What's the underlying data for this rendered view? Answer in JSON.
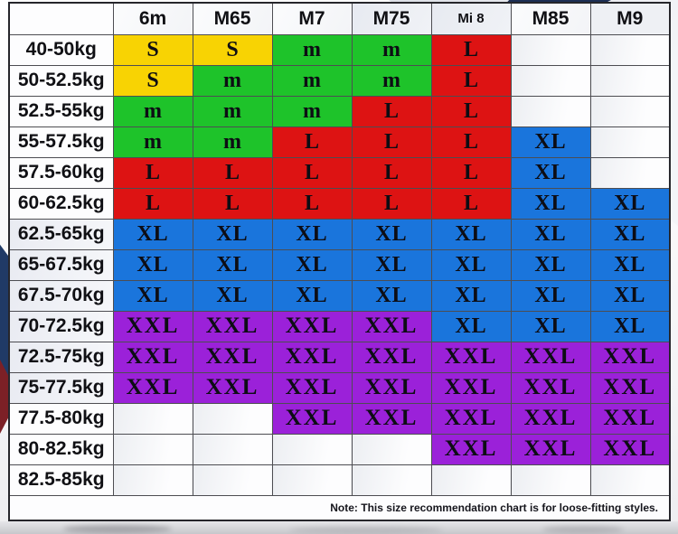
{
  "colors": {
    "yellow": "#f8d303",
    "green": "#1ec32a",
    "red": "#dd1313",
    "blue": "#1a75dc",
    "purple": "#9b21d9"
  },
  "chart_data": {
    "type": "table",
    "corner_label": "",
    "columns": [
      "6m",
      "M65",
      "M7",
      "M75",
      "Mi 8",
      "M85",
      "M9"
    ],
    "rows": [
      {
        "label": "40-50kg",
        "cells": [
          "S:yellow",
          "S:yellow",
          "m:green",
          "m:green",
          "L:red",
          "",
          ""
        ]
      },
      {
        "label": "50-52.5kg",
        "cells": [
          "S:yellow",
          "m:green",
          "m:green",
          "m:green",
          "L:red",
          "",
          ""
        ]
      },
      {
        "label": "52.5-55kg",
        "cells": [
          "m:green",
          "m:green",
          "m:green",
          "L:red",
          "L:red",
          "",
          ""
        ]
      },
      {
        "label": "55-57.5kg",
        "cells": [
          "m:green",
          "m:green",
          "L:red",
          "L:red",
          "L:red",
          "XL:blue",
          ""
        ]
      },
      {
        "label": "57.5-60kg",
        "cells": [
          "L:red",
          "L:red",
          "L:red",
          "L:red",
          "L:red",
          "XL:blue",
          ""
        ]
      },
      {
        "label": "60-62.5kg",
        "cells": [
          "L:red",
          "L:red",
          "L:red",
          "L:red",
          "L:red",
          "XL:blue",
          "XL:blue"
        ]
      },
      {
        "label": "62.5-65kg",
        "cells": [
          "XL:blue",
          "XL:blue",
          "XL:blue",
          "XL:blue",
          "XL:blue",
          "XL:blue",
          "XL:blue"
        ]
      },
      {
        "label": "65-67.5kg",
        "cells": [
          "XL:blue",
          "XL:blue",
          "XL:blue",
          "XL:blue",
          "XL:blue",
          "XL:blue",
          "XL:blue"
        ]
      },
      {
        "label": "67.5-70kg",
        "cells": [
          "XL:blue",
          "XL:blue",
          "XL:blue",
          "XL:blue",
          "XL:blue",
          "XL:blue",
          "XL:blue"
        ]
      },
      {
        "label": "70-72.5kg",
        "cells": [
          "XXL:purple",
          "XXL:purple",
          "XXL:purple",
          "XXL:purple",
          "XL:blue",
          "XL:blue",
          "XL:blue"
        ]
      },
      {
        "label": "72.5-75kg",
        "cells": [
          "XXL:purple",
          "XXL:purple",
          "XXL:purple",
          "XXL:purple",
          "XXL:purple",
          "XXL:purple",
          "XXL:purple"
        ]
      },
      {
        "label": "75-77.5kg",
        "cells": [
          "XXL:purple",
          "XXL:purple",
          "XXL:purple",
          "XXL:purple",
          "XXL:purple",
          "XXL:purple",
          "XXL:purple"
        ]
      },
      {
        "label": "77.5-80kg",
        "cells": [
          "",
          "",
          "XXL:purple",
          "XXL:purple",
          "XXL:purple",
          "XXL:purple",
          "XXL:purple"
        ]
      },
      {
        "label": "80-82.5kg",
        "cells": [
          "",
          "",
          "",
          "",
          "XXL:purple",
          "XXL:purple",
          "XXL:purple"
        ]
      },
      {
        "label": "82.5-85kg",
        "cells": [
          "",
          "",
          "",
          "",
          "",
          "",
          ""
        ]
      }
    ],
    "note": "Note: This size recommendation chart is for loose-fitting styles."
  }
}
